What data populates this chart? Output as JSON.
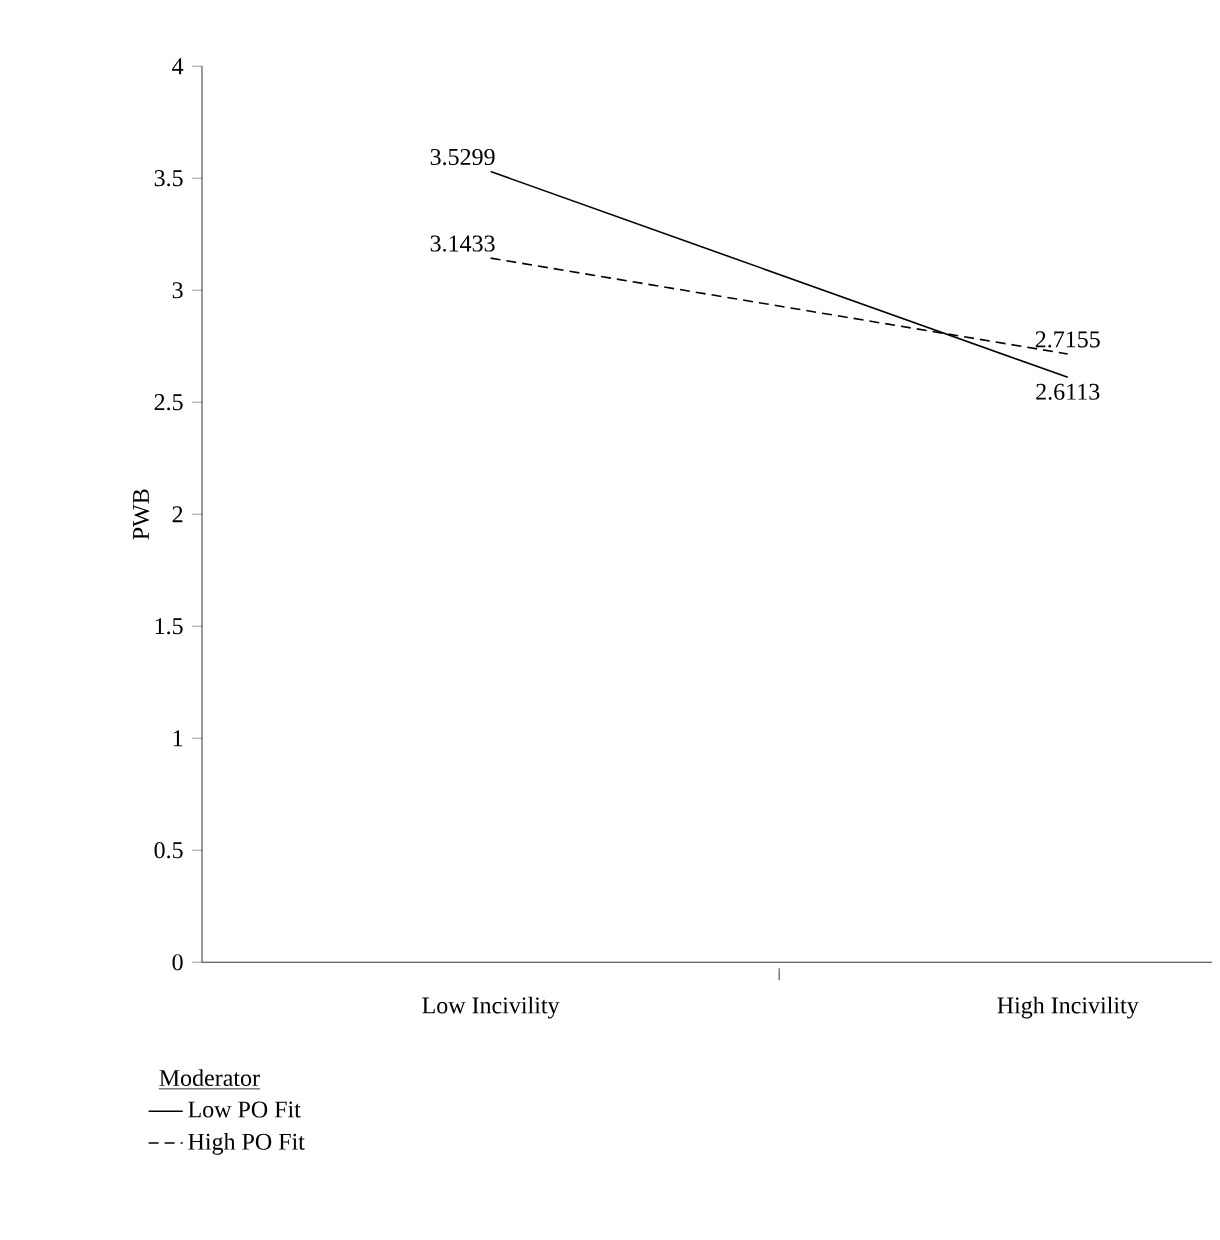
{
  "chart_data": {
    "type": "line",
    "ylabel": "PWB",
    "categories": [
      "Low Incivility",
      "High Incivility"
    ],
    "series": [
      {
        "name": "Low PO Fit",
        "color": "#000000",
        "line_style": "solid",
        "values": [
          3.5299,
          2.6113
        ]
      },
      {
        "name": "High PO Fit",
        "color": "#000000",
        "line_style": "dashed",
        "values": [
          3.1433,
          2.7155
        ]
      }
    ],
    "ylim": [
      0,
      4
    ],
    "yticks": [
      0,
      0.5,
      1,
      1.5,
      2,
      2.5,
      3,
      3.5,
      4
    ],
    "legend_title": "Moderator",
    "legend": "bottom left",
    "data_labels": true,
    "grid": false,
    "marker": "none"
  }
}
